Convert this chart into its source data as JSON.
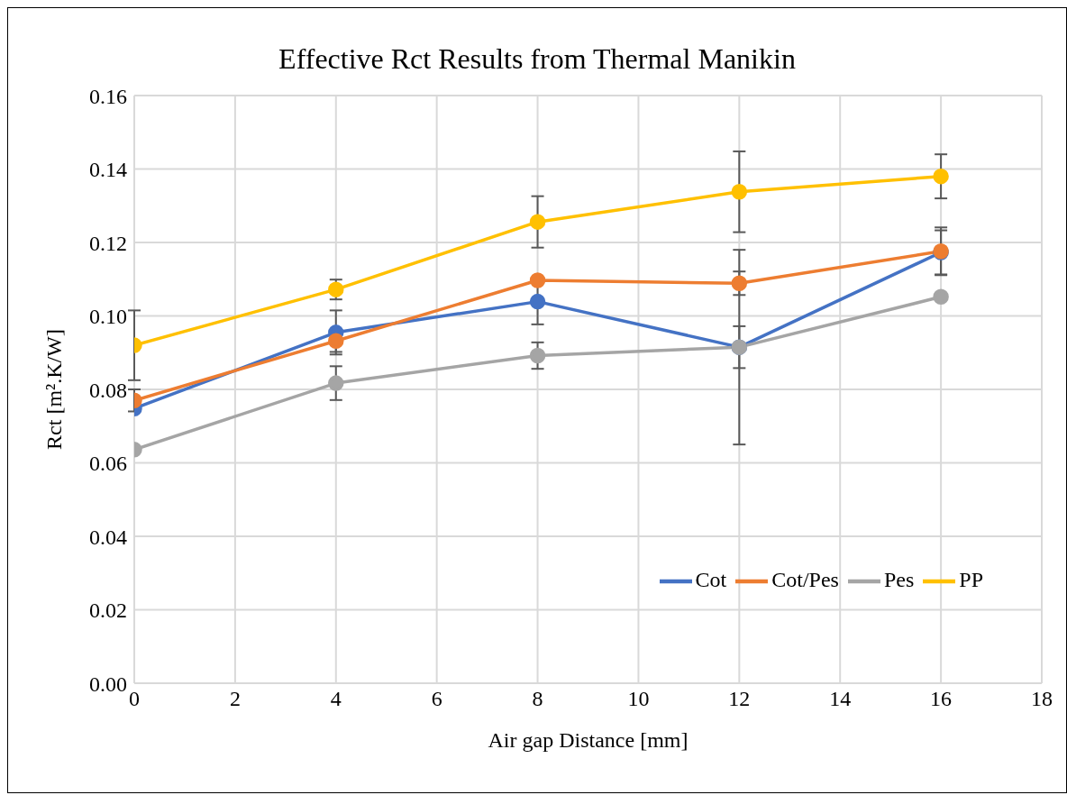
{
  "chart_data": {
    "type": "line",
    "title": "Effective Rct Results from Thermal Manikin",
    "xlabel": "Air gap Distance [mm]",
    "ylabel": "Rct  [m².K/W]",
    "x": [
      0,
      4,
      8,
      12,
      16
    ],
    "series": [
      {
        "name": "Cot",
        "color": "#4472c4",
        "values": [
          0.0748,
          0.0955,
          0.1039,
          0.0915,
          0.1173
        ],
        "errors": [
          null,
          0.006,
          0.0062,
          0.0265,
          0.006
        ]
      },
      {
        "name": "Cot/Pes",
        "color": "#ed7d31",
        "values": [
          0.077,
          0.0932,
          0.1097,
          0.1089,
          0.1176
        ],
        "errors": [
          0.003,
          0.003,
          null,
          0.0032,
          0.0065
        ]
      },
      {
        "name": "Pes",
        "color": "#a5a5a5",
        "values": [
          0.0636,
          0.0817,
          0.0892,
          0.0915,
          0.1052
        ],
        "errors": [
          null,
          0.0046,
          0.0036,
          0.0057,
          null
        ]
      },
      {
        "name": "PP",
        "color": "#ffc000",
        "values": [
          0.092,
          0.1072,
          0.1256,
          0.1338,
          0.138
        ],
        "errors": [
          0.0095,
          0.0027,
          0.007,
          0.011,
          0.006
        ]
      }
    ],
    "xlim": [
      0,
      18
    ],
    "xticks": [
      0,
      2,
      4,
      6,
      8,
      10,
      12,
      14,
      16,
      18
    ],
    "ylim": [
      0,
      0.16
    ],
    "yticks": [
      {
        "value": 0,
        "label": "0.00"
      },
      {
        "value": 0.02,
        "label": "0.02"
      },
      {
        "value": 0.04,
        "label": "0.04"
      },
      {
        "value": 0.06,
        "label": "0.06"
      },
      {
        "value": 0.08,
        "label": "0.08"
      },
      {
        "value": 0.1,
        "label": "0.10"
      },
      {
        "value": 0.12,
        "label": "0.12"
      },
      {
        "value": 0.14,
        "label": "0.14"
      },
      {
        "value": 0.16,
        "label": "0.16"
      }
    ],
    "grid": true,
    "legend": "bottom right",
    "marker": "circle",
    "line_style": "solid"
  }
}
